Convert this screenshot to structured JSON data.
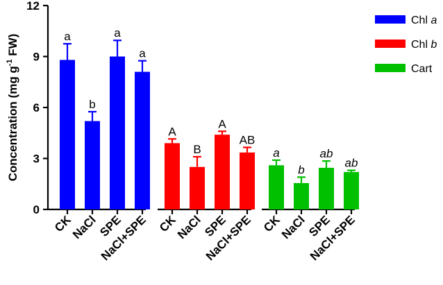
{
  "chart_data": {
    "type": "bar",
    "ylabel_main": "Concentration (mg g",
    "ylabel_sup": "-1",
    "ylabel_tail": " FW)",
    "ylim": [
      0,
      12
    ],
    "y_ticks": [
      0,
      3,
      6,
      9,
      12
    ],
    "grid": false,
    "legend_position": "right",
    "series": [
      {
        "name_prefix": "Chl ",
        "name_italic": "a",
        "color": "#0000ff",
        "letter_style": "normal",
        "categories": [
          "CK",
          "NaCl",
          "SPE",
          "NaCl+SPE"
        ],
        "values": [
          8.8,
          5.2,
          9.0,
          8.1
        ],
        "errors": [
          0.95,
          0.55,
          0.95,
          0.65
        ],
        "letters": [
          "a",
          "b",
          "a",
          "a"
        ]
      },
      {
        "name_prefix": "Chl ",
        "name_italic": "b",
        "color": "#ff0000",
        "letter_style": "normal",
        "categories": [
          "CK",
          "NaCl",
          "SPE",
          "NaCl+SPE"
        ],
        "values": [
          3.9,
          2.5,
          4.4,
          3.35
        ],
        "errors": [
          0.25,
          0.6,
          0.2,
          0.3
        ],
        "letters": [
          "A",
          "B",
          "A",
          "AB"
        ]
      },
      {
        "name_prefix": "Cart",
        "name_italic": "",
        "color": "#00c000",
        "letter_style": "italic",
        "categories": [
          "CK",
          "NaCl",
          "SPE",
          "NaCl+SPE"
        ],
        "values": [
          2.6,
          1.55,
          2.45,
          2.2
        ],
        "errors": [
          0.3,
          0.35,
          0.4,
          0.1
        ],
        "letters": [
          "a",
          "b",
          "ab",
          "ab"
        ]
      }
    ]
  }
}
